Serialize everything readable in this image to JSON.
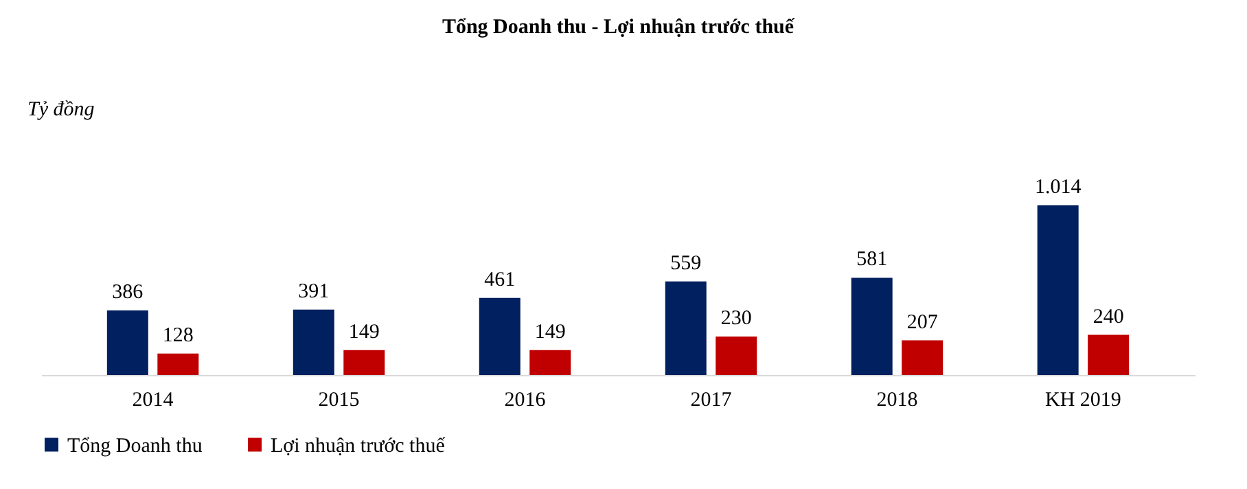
{
  "chart_data": {
    "type": "bar",
    "title": "Tổng Doanh thu - Lợi nhuận trước thuế",
    "ylabel": "Tỷ đồng",
    "categories": [
      "2014",
      "2015",
      "2016",
      "2017",
      "2018",
      "KH 2019"
    ],
    "series": [
      {
        "name": "Tổng Doanh thu",
        "color": "#002060",
        "values": [
          386,
          391,
          461,
          559,
          581,
          1014
        ],
        "value_labels": [
          "386",
          "391",
          "461",
          "559",
          "581",
          "1.014"
        ]
      },
      {
        "name": "Lợi nhuận trước thuế",
        "color": "#c00000",
        "values": [
          128,
          149,
          149,
          230,
          207,
          240
        ],
        "value_labels": [
          "128",
          "149",
          "149",
          "230",
          "207",
          "240"
        ]
      }
    ],
    "legend": "bottom"
  }
}
